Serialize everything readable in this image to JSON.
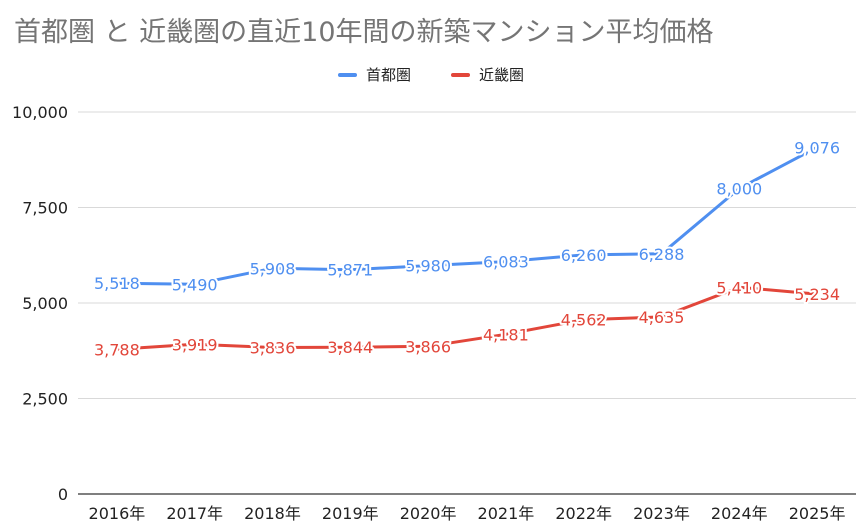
{
  "chart_data": {
    "type": "line",
    "title": "首都圏 と 近畿圏の直近10年間の新築マンション平均価格",
    "xlabel": "",
    "ylabel": "",
    "categories": [
      "2016年",
      "2017年",
      "2018年",
      "2019年",
      "2020年",
      "2021年",
      "2022年",
      "2023年",
      "2024年",
      "2025年"
    ],
    "ylim": [
      0,
      10000
    ],
    "yticks": [
      0,
      2500,
      5000,
      7500,
      10000
    ],
    "ytick_labels": [
      "0",
      "2,500",
      "5,000",
      "7,500",
      "10,000"
    ],
    "grid": true,
    "legend_position": "top-center",
    "series": [
      {
        "name": "首都圏",
        "color": "#4f8ff0",
        "values": [
          5518,
          5490,
          5908,
          5871,
          5980,
          6083,
          6260,
          6288,
          8000,
          9076
        ],
        "labels": [
          "5,518",
          "5,490",
          "5,908",
          "5,871",
          "5,980",
          "6,083",
          "6,260",
          "6,288",
          "8,000",
          "9,076"
        ]
      },
      {
        "name": "近畿圏",
        "color": "#e2463a",
        "values": [
          3788,
          3919,
          3836,
          3844,
          3866,
          4181,
          4562,
          4635,
          5410,
          5234
        ],
        "labels": [
          "3,788",
          "3,919",
          "3,836",
          "3,844",
          "3,866",
          "4,181",
          "4,562",
          "4,635",
          "5,410",
          "5,234"
        ]
      }
    ]
  }
}
